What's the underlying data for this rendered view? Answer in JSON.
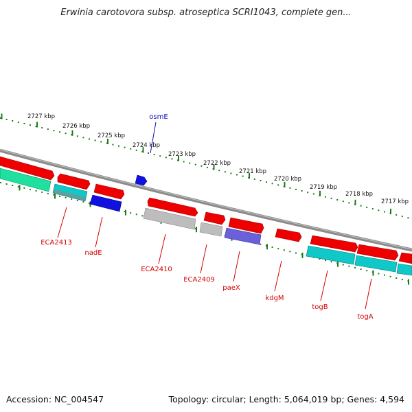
{
  "title": "Erwinia carotovora subsp. atroseptica SCRI1043, complete gen...",
  "footer": {
    "accession": "Accession: NC_004547",
    "summary": "Topology: circular; Length: 5,064,019 bp; Genes: 4,594"
  },
  "colors": {
    "backbone": "#8a8a8a",
    "ruler": "#1a7a1a",
    "gene_red": "#ee0000",
    "gene_blue": "#1010e0",
    "gene_teal": "#10c8c8",
    "gene_green": "#20e0a0",
    "gene_grey": "#bdbdbd",
    "gene_purple": "#6a60d8",
    "label_red": "#d40000",
    "label_blue": "#1010c0"
  },
  "ruler_labels": [
    "2727 kbp",
    "2726 kbp",
    "2725 kbp",
    "2724 kbp",
    "2723 kbp",
    "2722 kbp",
    "2721 kbp",
    "2720 kbp",
    "2719 kbp",
    "2718 kbp",
    "2717 kbp"
  ],
  "gene_labels": [
    {
      "name": "osmE",
      "color": "blue"
    },
    {
      "name": "ECA2413",
      "color": "red"
    },
    {
      "name": "nadE",
      "color": "red"
    },
    {
      "name": "ECA2410",
      "color": "red"
    },
    {
      "name": "ECA2409",
      "color": "red"
    },
    {
      "name": "paeX",
      "color": "red"
    },
    {
      "name": "kdgM",
      "color": "red"
    },
    {
      "name": "togB",
      "color": "red"
    },
    {
      "name": "togA",
      "color": "red"
    }
  ]
}
